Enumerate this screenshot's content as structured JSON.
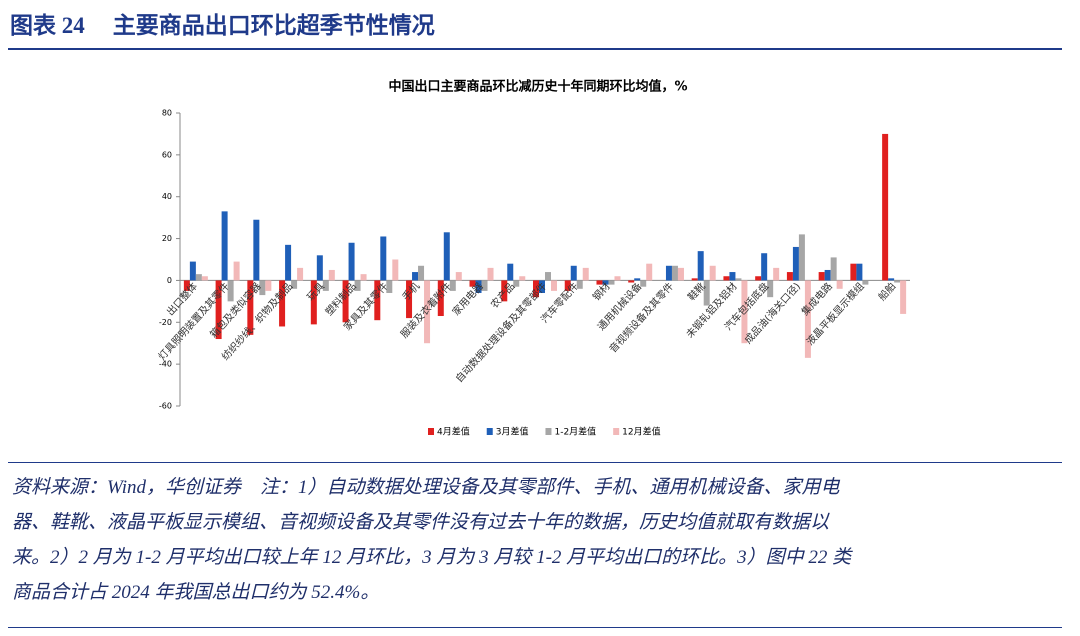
{
  "header": {
    "label": "图表 24",
    "title": "主要商品出口环比超季节性情况"
  },
  "chart_data": {
    "type": "bar",
    "title": "中国出口主要商品环比减历史十年同期环比均值，%",
    "categories": [
      "出口整体",
      "灯具照明装置及其零件",
      "箱包及类似容器",
      "纺织纱线、织物及制品",
      "玩具",
      "塑料制品",
      "家具及其零件",
      "手机",
      "服装及衣着附件",
      "家用电器",
      "农产品",
      "自动数据处理设备及其零部件",
      "汽车零配件",
      "钢材",
      "通用机械设备",
      "音视频设备及其零件",
      "鞋靴",
      "未锻轧铝及铝材",
      "汽车包括底盘",
      "成品油(海关口径)",
      "集成电路",
      "液晶平板显示模组",
      "船舶"
    ],
    "series": [
      {
        "name": "4月差值",
        "color": "#e0201f",
        "values": [
          -5,
          -28,
          -26,
          -22,
          -21,
          -20,
          -19,
          -18,
          -17,
          -3,
          -10,
          -8,
          -5,
          -2,
          -1,
          0,
          1,
          2,
          2,
          4,
          4,
          8,
          70
        ]
      },
      {
        "name": "3月差值",
        "color": "#1f5fb8",
        "values": [
          9,
          33,
          29,
          17,
          12,
          18,
          21,
          4,
          23,
          -6,
          8,
          -6,
          7,
          -2,
          1,
          7,
          14,
          4,
          13,
          16,
          5,
          8,
          1
        ]
      },
      {
        "name": "1-2月差值",
        "color": "#a6a6a6",
        "values": [
          3,
          -10,
          -7,
          -4,
          -5,
          -5,
          -6,
          7,
          -5,
          -5,
          -3,
          4,
          -4,
          -2,
          -3,
          7,
          -12,
          1,
          -8,
          22,
          11,
          -2,
          -1
        ]
      },
      {
        "name": "12月差值",
        "color": "#f2b8b8",
        "values": [
          2,
          9,
          -5,
          6,
          5,
          3,
          10,
          -30,
          4,
          6,
          2,
          -5,
          6,
          2,
          8,
          6,
          7,
          -30,
          6,
          -37,
          -4,
          0,
          -16
        ]
      }
    ],
    "ylim": [
      -60,
      80
    ],
    "yticks": [
      -60,
      -40,
      -20,
      0,
      20,
      40,
      60,
      80
    ],
    "legend": "bottom"
  },
  "footnote": [
    "资料来源：Wind，华创证券　注：1）自动数据处理设备及其零部件、手机、通用机械设备、家用电",
    "器、鞋靴、液晶平板显示模组、音视频设备及其零件没有过去十年的数据，历史均值就取有数据以",
    "来。2）2 月为 1-2 月平均出口较上年 12 月环比，3 月为 3 月较 1-2 月平均出口的环比。3）图中 22 类",
    "商品合计占 2024 年我国总出口约为 52.4%。"
  ]
}
